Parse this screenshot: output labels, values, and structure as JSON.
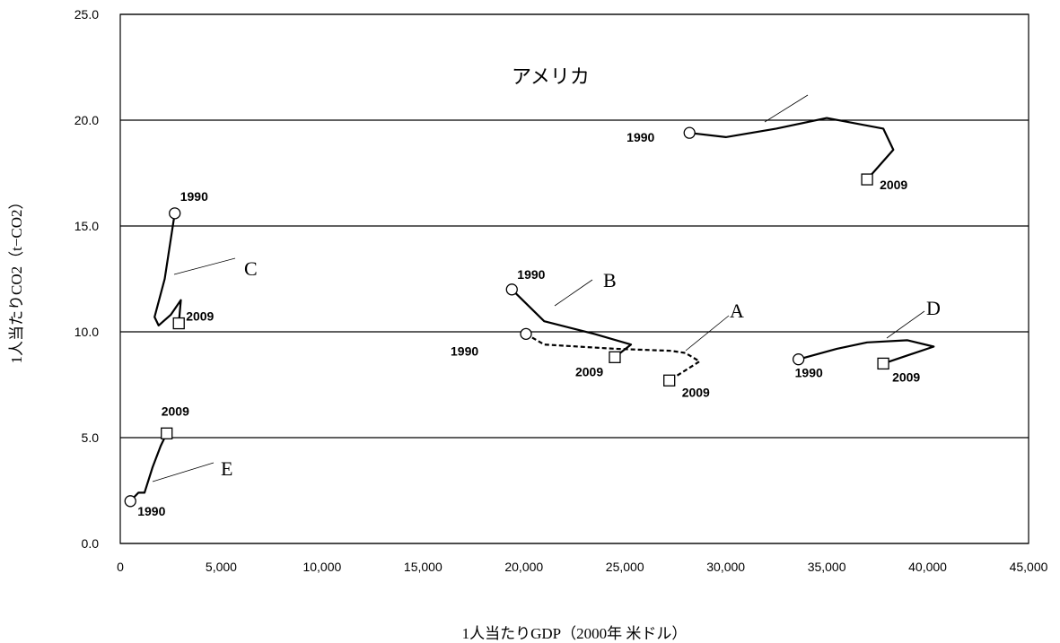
{
  "chart_data": {
    "type": "line",
    "title": "",
    "xlabel": "1人当たりGDP（2000年 米ドル）",
    "ylabel": "1人当たりCO2（t−CO2）",
    "xlim": [
      0,
      45000
    ],
    "ylim": [
      0,
      25
    ],
    "x_ticks": [
      "0",
      "5,000",
      "10,000",
      "15,000",
      "20,000",
      "25,000",
      "30,000",
      "35,000",
      "40,000",
      "45,000"
    ],
    "y_ticks": [
      "0.0",
      "5.0",
      "10.0",
      "15.0",
      "20.0",
      "25.0"
    ],
    "grid": "horizontal",
    "series": [
      {
        "name": "アメリカ",
        "style": "solid",
        "start_label": "1990",
        "end_label": "2009",
        "points": [
          [
            28200,
            19.4
          ],
          [
            30000,
            19.2
          ],
          [
            32500,
            19.6
          ],
          [
            35000,
            20.1
          ],
          [
            37800,
            19.6
          ],
          [
            38300,
            18.6
          ],
          [
            37000,
            17.2
          ]
        ]
      },
      {
        "name": "A",
        "style": "dashed",
        "start_label": "1990",
        "end_label": "2009",
        "points": [
          [
            20100,
            9.9
          ],
          [
            21000,
            9.4
          ],
          [
            24500,
            9.2
          ],
          [
            27300,
            9.1
          ],
          [
            28000,
            9.0
          ],
          [
            28700,
            8.6
          ],
          [
            27200,
            7.7
          ]
        ]
      },
      {
        "name": "B",
        "style": "solid",
        "start_label": "1990",
        "end_label": "2009",
        "points": [
          [
            19400,
            12.0
          ],
          [
            21000,
            10.5
          ],
          [
            23500,
            9.9
          ],
          [
            25300,
            9.4
          ],
          [
            24500,
            8.8
          ]
        ]
      },
      {
        "name": "C",
        "style": "solid",
        "start_label": "1990",
        "end_label": "2009",
        "points": [
          [
            2700,
            15.6
          ],
          [
            2200,
            12.5
          ],
          [
            1700,
            10.7
          ],
          [
            1900,
            10.3
          ],
          [
            2500,
            10.8
          ],
          [
            3000,
            11.5
          ],
          [
            2900,
            10.4
          ]
        ]
      },
      {
        "name": "D",
        "style": "solid",
        "start_label": "1990",
        "end_label": "2009",
        "points": [
          [
            33600,
            8.7
          ],
          [
            35500,
            9.2
          ],
          [
            37000,
            9.5
          ],
          [
            39000,
            9.6
          ],
          [
            40300,
            9.3
          ],
          [
            37800,
            8.5
          ]
        ]
      },
      {
        "name": "E",
        "style": "solid",
        "start_label": "1990",
        "end_label": "2009",
        "points": [
          [
            500,
            2.0
          ],
          [
            900,
            2.4
          ],
          [
            1200,
            2.4
          ],
          [
            1600,
            3.6
          ],
          [
            2000,
            4.6
          ],
          [
            2300,
            5.2
          ]
        ]
      }
    ]
  }
}
